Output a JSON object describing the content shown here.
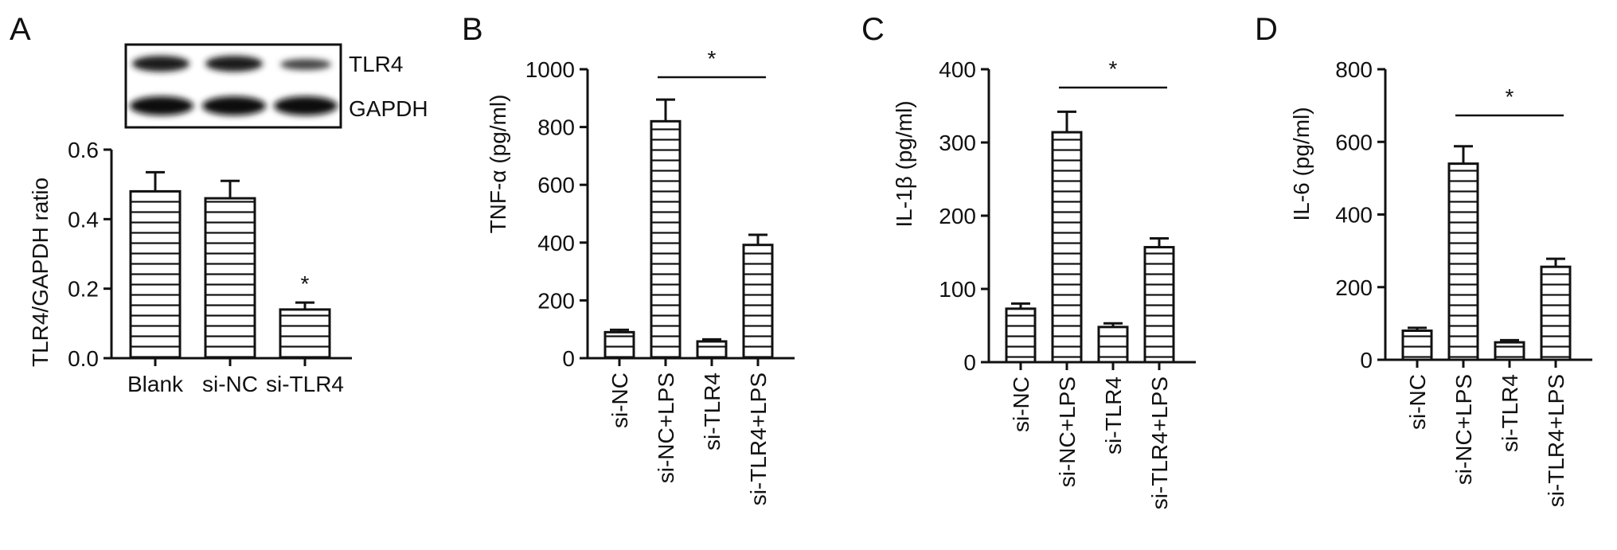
{
  "chart_data": [
    {
      "type": "bar",
      "panel": "A",
      "ylabel": "TLR4/GAPDH ratio",
      "ylim": [
        0,
        0.6
      ],
      "yticks": [
        "0.0",
        "0.2",
        "0.4",
        "0.6"
      ],
      "categories": [
        "Blank",
        "si-NC",
        "si-TLR4"
      ],
      "values": [
        0.48,
        0.46,
        0.14
      ],
      "errors": [
        0.055,
        0.05,
        0.02
      ],
      "significance": [
        {
          "category_index": 2,
          "label": "*"
        }
      ],
      "blot": {
        "bands": [
          "TLR4",
          "GAPDH"
        ]
      }
    },
    {
      "type": "bar",
      "panel": "B",
      "ylabel": "TNF-α (pg/ml)",
      "ylim": [
        0,
        1000
      ],
      "yticks": [
        "0",
        "200",
        "400",
        "600",
        "800",
        "1000"
      ],
      "categories": [
        "si-NC",
        "si-NC+LPS",
        "si-TLR4",
        "si-TLR4+LPS"
      ],
      "values": [
        90,
        820,
        58,
        392
      ],
      "errors": [
        8,
        75,
        7,
        35
      ],
      "bracket": {
        "from": 1,
        "to": 3,
        "label": "*"
      }
    },
    {
      "type": "bar",
      "panel": "C",
      "ylabel": "IL-1β (pg/ml)",
      "ylim": [
        0,
        400
      ],
      "yticks": [
        "0",
        "100",
        "200",
        "300",
        "400"
      ],
      "categories": [
        "si-NC",
        "si-NC+LPS",
        "si-TLR4",
        "si-TLR4+LPS"
      ],
      "values": [
        73,
        314,
        48,
        157
      ],
      "errors": [
        7,
        28,
        5,
        12
      ],
      "bracket": {
        "from": 1,
        "to": 3,
        "label": "*"
      }
    },
    {
      "type": "bar",
      "panel": "D",
      "ylabel": "IL-6 (pg/ml)",
      "ylim": [
        0,
        800
      ],
      "yticks": [
        "0",
        "200",
        "400",
        "600",
        "800"
      ],
      "categories": [
        "si-NC",
        "si-NC+LPS",
        "si-TLR4",
        "si-TLR4+LPS"
      ],
      "values": [
        80,
        540,
        48,
        256
      ],
      "errors": [
        8,
        48,
        6,
        22
      ],
      "bracket": {
        "from": 1,
        "to": 3,
        "label": "*"
      }
    }
  ]
}
